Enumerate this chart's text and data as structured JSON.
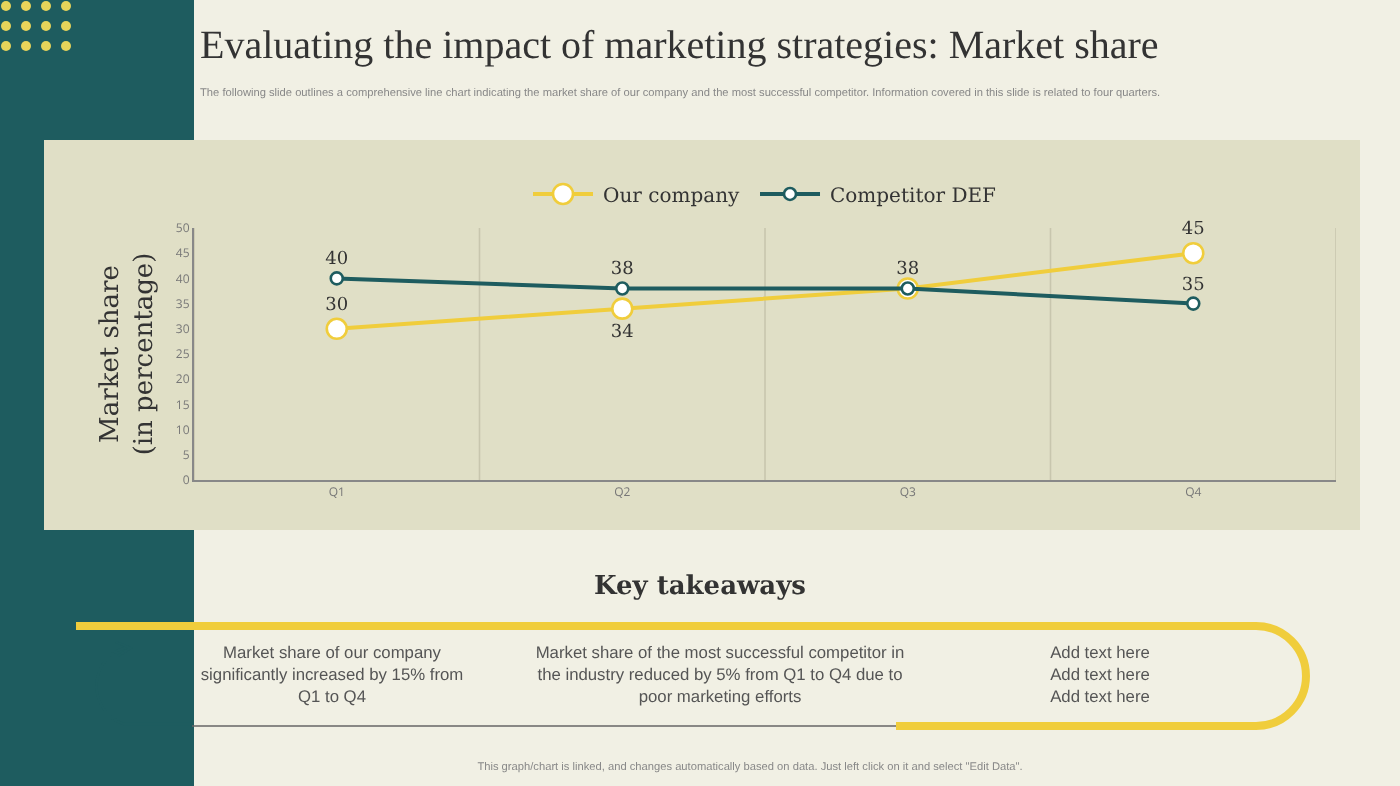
{
  "chart_data": {
    "type": "line",
    "title": "Evaluating the impact of marketing strategies: Market share",
    "subtitle": "The following slide outlines a comprehensive line chart indicating the market share of our company and the most successful competitor. Information covered in this slide is related to four quarters.",
    "ylabel": "Market share\n(in percentage)",
    "categories": [
      "Q1",
      "Q2",
      "Q3",
      "Q4"
    ],
    "series": [
      {
        "name": "Our company",
        "color": "#f0cd3c",
        "values": [
          30,
          34,
          38,
          45
        ],
        "value_labels": [
          "30",
          "34",
          null,
          "45"
        ]
      },
      {
        "name": "Competitor DEF",
        "color": "#1e5c5f",
        "values": [
          40,
          38,
          38,
          35
        ],
        "value_labels": [
          "40",
          "38",
          "38",
          "35"
        ]
      }
    ],
    "ylim": [
      0,
      50
    ],
    "yticks": [
      0,
      5,
      10,
      15,
      20,
      25,
      30,
      35,
      40,
      45,
      50
    ],
    "grid": "x",
    "legend": "top",
    "marker": "circle",
    "line_style": "solid",
    "annotations": [
      "Key takeaways",
      "Market share of our company significantly increased by 15% from Q1 to Q4",
      "Market share of the most successful competitor in the industry reduced by 5% from Q1 to Q4 due to poor marketing efforts",
      "Add text here\nAdd text here\nAdd text here",
      "This graph/chart is linked, and changes automatically based on data. Just left click on it and select \"Edit Data\"."
    ]
  }
}
